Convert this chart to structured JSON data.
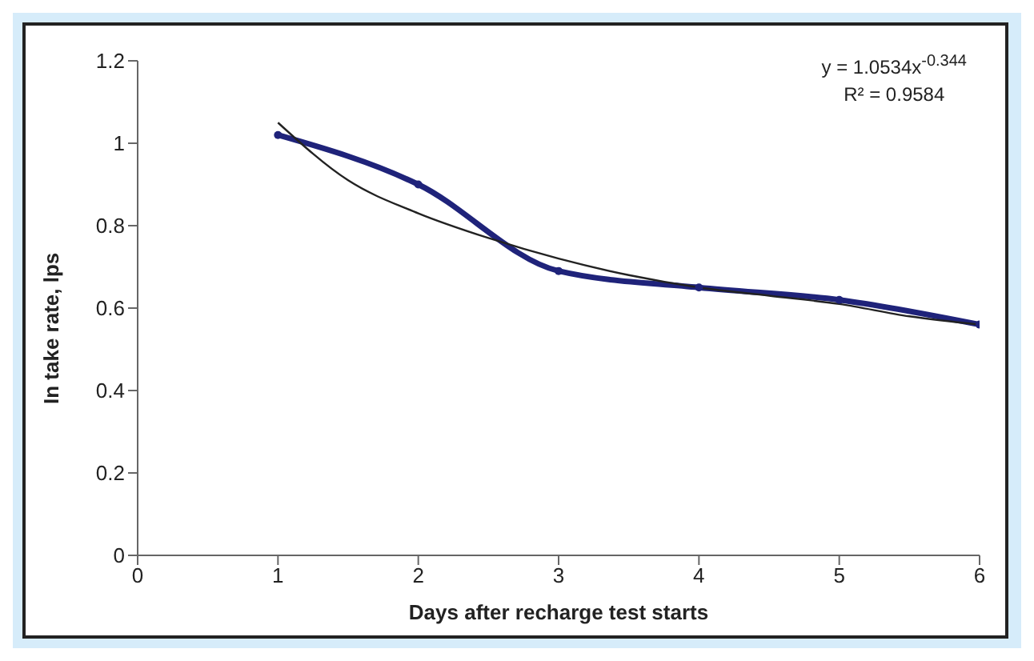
{
  "chart_data": {
    "type": "line",
    "xlabel": "Days after recharge test starts",
    "ylabel": "In take rate, lps",
    "xlim": [
      0,
      6
    ],
    "xticks": [
      0,
      1,
      2,
      3,
      4,
      5,
      6
    ],
    "ylim": [
      0,
      1.2
    ],
    "yticks": [
      0,
      0.2,
      0.4,
      0.6,
      0.8,
      1,
      1.2
    ],
    "grid": false,
    "legend": false,
    "annotations": [
      "y = 1.0534x$^{-0.344}$",
      "R² = 0.9584"
    ],
    "series": [
      {
        "color": "#1f237a",
        "x": [
          1,
          2,
          3,
          4,
          5,
          6
        ],
        "values": [
          1.02,
          0.9,
          0.69,
          0.65,
          0.62,
          0.56
        ],
        "marker": "circle",
        "line_style": "solid"
      },
      {
        "type": "line",
        "color": "#222222",
        "x": [
          1,
          1.5,
          2,
          2.5,
          3,
          3.5,
          4,
          4.5,
          5,
          5.5,
          6
        ],
        "values": [
          1.05,
          0.91,
          0.83,
          0.77,
          0.72,
          0.68,
          0.65,
          0.63,
          0.61,
          0.58,
          0.56
        ],
        "marker": "none",
        "line_style": "solid"
      }
    ]
  }
}
